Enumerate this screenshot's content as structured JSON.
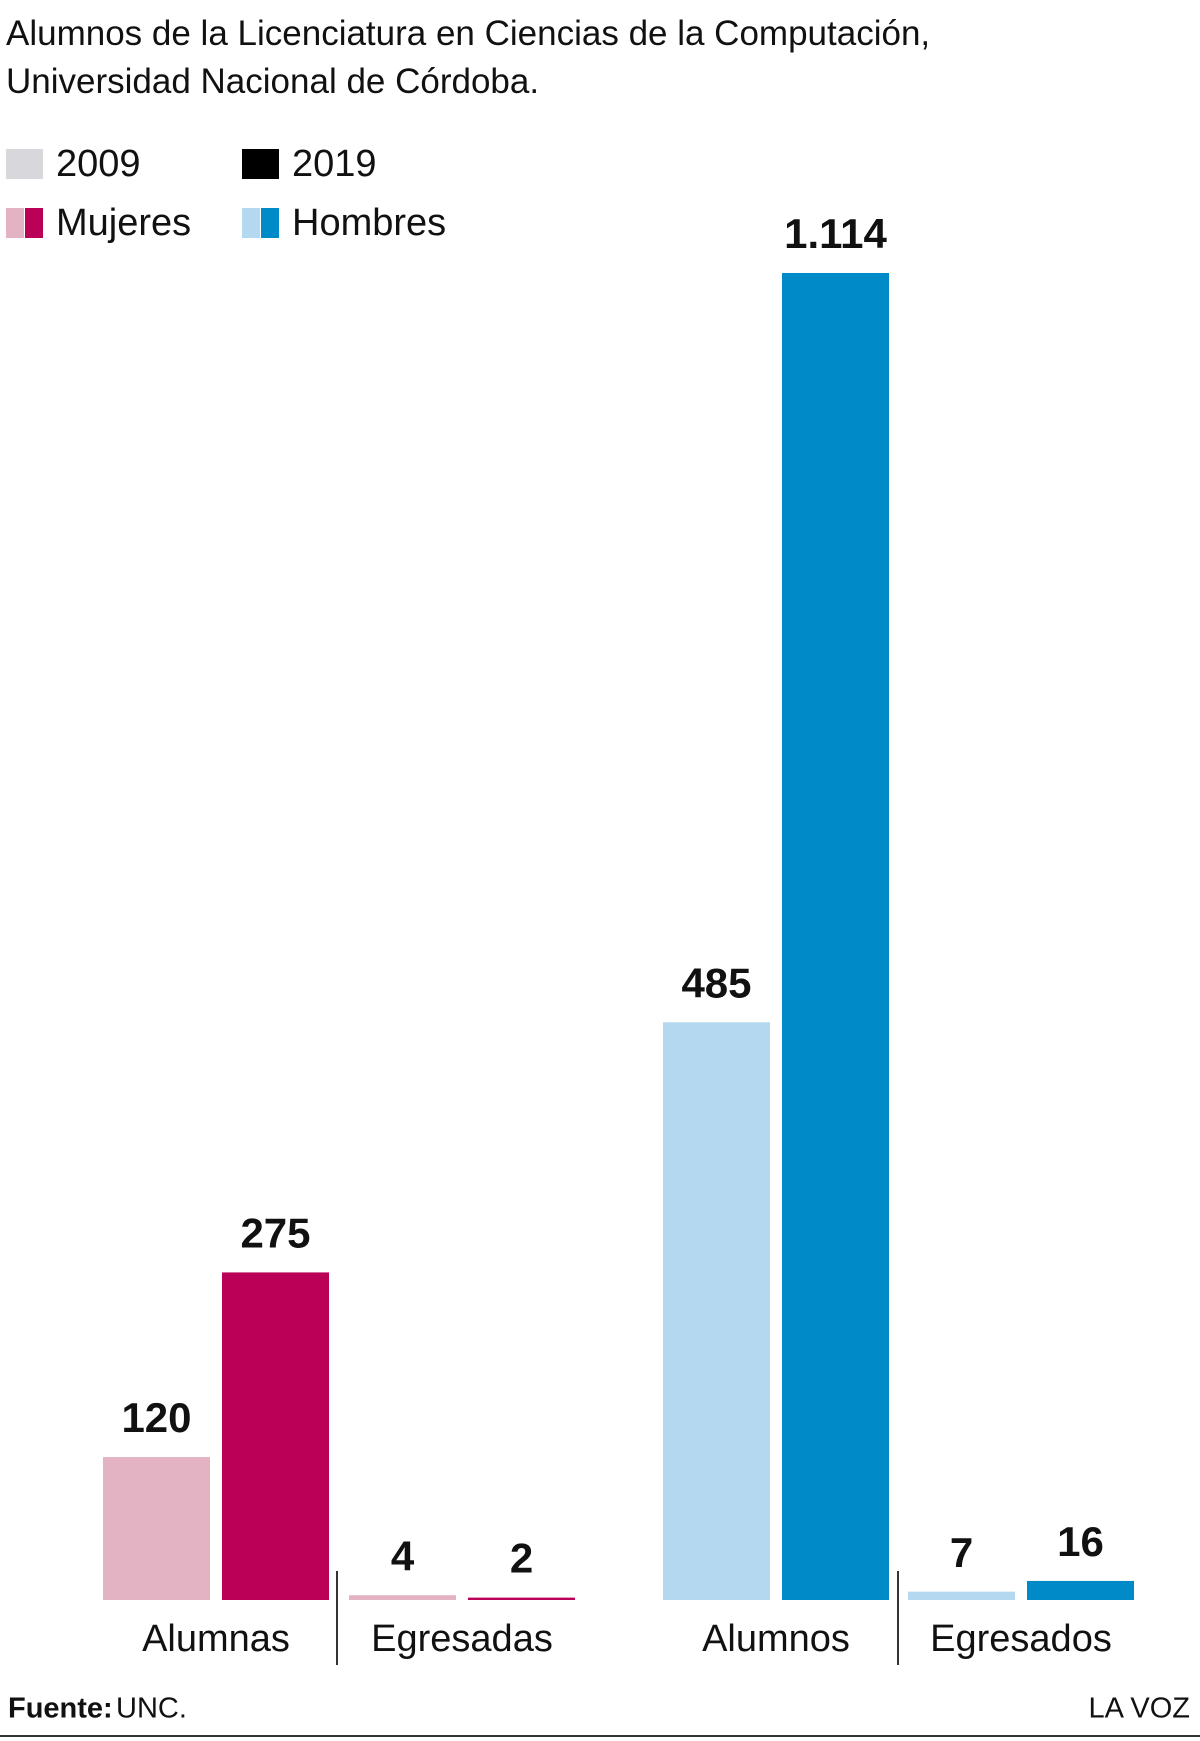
{
  "chart_data": {
    "type": "bar",
    "title": "Alumnos de la Licenciatura en Ciencias de la Computación, Universidad Nacional de Córdoba.",
    "categories": [
      "Alumnas",
      "Egresadas",
      "Alumnos",
      "Egresados"
    ],
    "series": [
      {
        "name": "2009",
        "color": "#d8d8dc",
        "colors": [
          "#e3b3c3",
          "#e3b3c3",
          "#b5d8f1",
          "#b5d8f1"
        ],
        "values": [
          120,
          4,
          485,
          7
        ]
      },
      {
        "name": "2019",
        "color": "#000000",
        "colors": [
          "#bb0058",
          "#bb0058",
          "#008ac8",
          "#008ac8"
        ],
        "values": [
          275,
          2,
          1114,
          16
        ],
        "value_labels": [
          "275",
          "2",
          "1.114",
          "16"
        ]
      }
    ],
    "groups": [
      {
        "name": "Mujeres",
        "colors": [
          "#e3b3c3",
          "#bb0058"
        ]
      },
      {
        "name": "Hombres",
        "colors": [
          "#b5d8f1",
          "#008ac8"
        ]
      }
    ],
    "source_label": "Fuente:",
    "source": "UNC.",
    "credit": "LA VOZ"
  }
}
